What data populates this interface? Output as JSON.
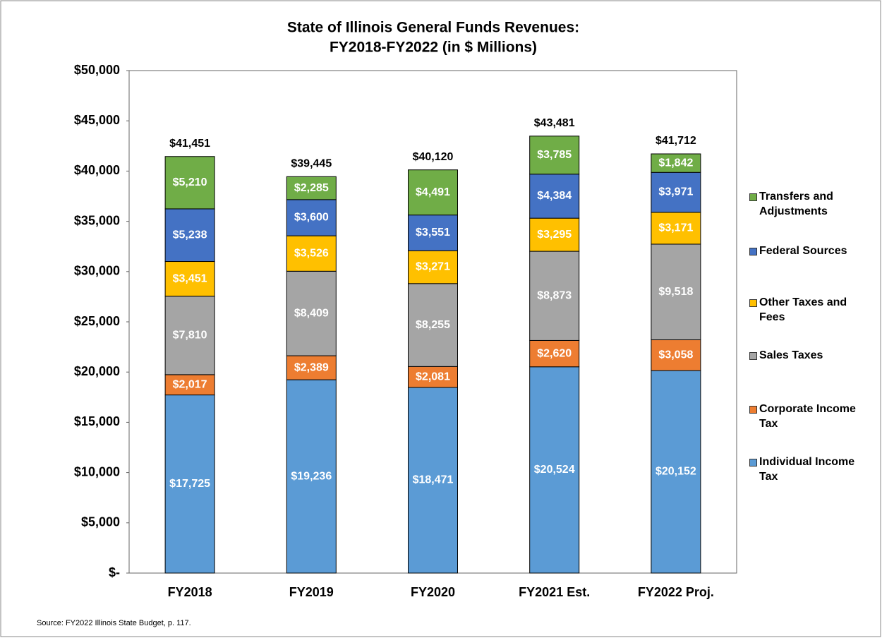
{
  "chart_data": {
    "type": "stacked_bar",
    "title": [
      "State of Illinois General Funds Revenues:",
      "FY2018-FY2022 (in $ Millions)"
    ],
    "categories": [
      "FY2018",
      "FY2019",
      "FY2020",
      "FY2021 Est.",
      "FY2022 Proj."
    ],
    "series": [
      {
        "name": "Individual Income Tax",
        "color": "#5b9bd5",
        "values": [
          17725,
          19236,
          18471,
          20524,
          20152
        ],
        "value_labels": [
          "$17,725",
          "$19,236",
          "$18,471",
          "$20,524",
          "$20,152"
        ]
      },
      {
        "name": "Corporate Income Tax",
        "color": "#ed7d31",
        "values": [
          2017,
          2389,
          2081,
          2620,
          3058
        ],
        "value_labels": [
          "$2,017",
          "$2,389",
          "$2,081",
          "$2,620",
          "$3,058"
        ]
      },
      {
        "name": "Sales Taxes",
        "color": "#a5a5a5",
        "values": [
          7810,
          8409,
          8255,
          8873,
          9518
        ],
        "value_labels": [
          "$7,810",
          "$8,409",
          "$8,255",
          "$8,873",
          "$9,518"
        ]
      },
      {
        "name": "Other Taxes and Fees",
        "color": "#ffc000",
        "values": [
          3451,
          3526,
          3271,
          3295,
          3171
        ],
        "value_labels": [
          "$3,451",
          "$3,526",
          "$3,271",
          "$3,295",
          "$3,171"
        ]
      },
      {
        "name": "Federal Sources",
        "color": "#4472c4",
        "values": [
          5238,
          3600,
          3551,
          4384,
          3971
        ],
        "value_labels": [
          "$5,238",
          "$3,600",
          "$3,551",
          "$4,384",
          "$3,971"
        ]
      },
      {
        "name": "Transfers and Adjustments",
        "color": "#70ad47",
        "values": [
          5210,
          2285,
          4491,
          3785,
          1842
        ],
        "value_labels": [
          "$5,210",
          "$2,285",
          "$4,491",
          "$3,785",
          "$1,842"
        ]
      }
    ],
    "totals": {
      "values": [
        41451,
        39445,
        40120,
        43481,
        41712
      ],
      "value_labels": [
        "$41,451",
        "$39,445",
        "$40,120",
        "$43,481",
        "$41,712"
      ]
    },
    "ylim": [
      0,
      50000
    ],
    "yticks": [
      {
        "value": 0,
        "label": "$-"
      },
      {
        "value": 5000,
        "label": "$5,000"
      },
      {
        "value": 10000,
        "label": "$10,000"
      },
      {
        "value": 15000,
        "label": "$15,000"
      },
      {
        "value": 20000,
        "label": "$20,000"
      },
      {
        "value": 25000,
        "label": "$25,000"
      },
      {
        "value": 30000,
        "label": "$30,000"
      },
      {
        "value": 35000,
        "label": "$35,000"
      },
      {
        "value": 40000,
        "label": "$40,000"
      },
      {
        "value": 45000,
        "label": "$45,000"
      },
      {
        "value": 50000,
        "label": "$50,000"
      }
    ],
    "grid": false,
    "legend": "right",
    "source": "Source: FY2022 Illinois State Budget, p. 117."
  }
}
